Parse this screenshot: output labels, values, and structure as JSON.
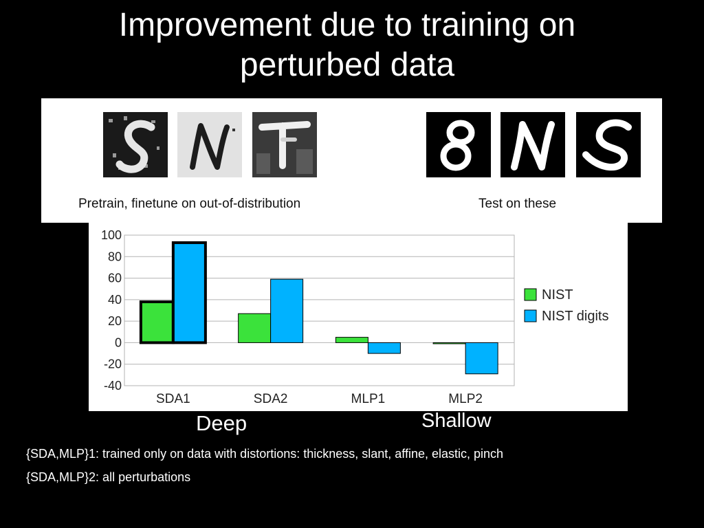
{
  "slide": {
    "title_line1": "Improvement due to training on",
    "title_line2": "perturbed data"
  },
  "samples": {
    "train_caption": "Pretrain, finetune on out-of-distribution",
    "test_caption": "Test on these",
    "train_images": [
      "perturbed-s-digit-image",
      "perturbed-n-letter-image",
      "perturbed-t-letter-image"
    ],
    "test_images": [
      "clean-8-digit-image",
      "clean-n-letter-image",
      "clean-s-letter-image"
    ]
  },
  "chart_data": {
    "type": "bar",
    "categories": [
      "SDA1",
      "SDA2",
      "MLP1",
      "MLP2"
    ],
    "series": [
      {
        "name": "NIST",
        "values": [
          38,
          27,
          5,
          -1
        ],
        "color": "#3be23b"
      },
      {
        "name": "NIST digits",
        "values": [
          93,
          59,
          -10,
          -29
        ],
        "color": "#00b2ff"
      }
    ],
    "ylim": [
      -40,
      100
    ],
    "yticks": [
      100,
      80,
      60,
      40,
      20,
      0,
      -20,
      -40
    ],
    "grid": true,
    "legend": "right",
    "highlighted_category": "SDA1"
  },
  "groups": {
    "deep_label": "Deep",
    "shallow_label": "Shallow"
  },
  "notes": {
    "line1": "{SDA,MLP}1: trained only on data with distortions: thickness, slant, affine, elastic, pinch",
    "line2": "{SDA,MLP}2: all perturbations"
  }
}
